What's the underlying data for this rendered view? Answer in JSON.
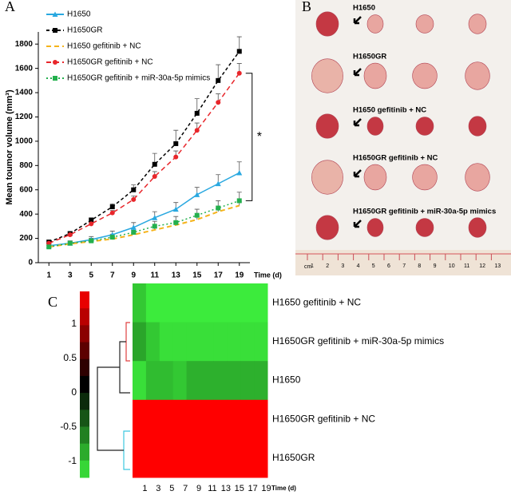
{
  "chart_data": [
    {
      "type": "line",
      "panel_label": "A",
      "ylabel": "Mean toumor volume (mm³)",
      "xlabel": "Time (d)",
      "x": [
        1,
        3,
        5,
        7,
        9,
        11,
        13,
        15,
        17,
        19
      ],
      "xlim": [
        0,
        20
      ],
      "xticks": [
        1,
        3,
        5,
        7,
        9,
        11,
        13,
        15,
        17,
        19
      ],
      "ylim": [
        0,
        1900
      ],
      "yticks": [
        0,
        200,
        400,
        600,
        800,
        1000,
        1200,
        1400,
        1600,
        1800
      ],
      "annotation": "*",
      "series": [
        {
          "name": "H1650",
          "color": "#29a8e0",
          "marker": "triangle",
          "dash": "none",
          "values": [
            140,
            160,
            190,
            230,
            290,
            370,
            440,
            560,
            650,
            740
          ],
          "errors": [
            20,
            20,
            25,
            30,
            40,
            50,
            55,
            60,
            75,
            90
          ]
        },
        {
          "name": "H1650GR",
          "color": "#000000",
          "marker": "square",
          "dash": "4,3",
          "values": [
            170,
            240,
            350,
            460,
            600,
            810,
            980,
            1230,
            1500,
            1740
          ],
          "errors": [
            15,
            15,
            20,
            25,
            40,
            90,
            110,
            120,
            130,
            120
          ]
        },
        {
          "name": "H1650 gefitinib + NC",
          "color": "#f5b31b",
          "marker": "none",
          "dash": "6,4",
          "values": [
            130,
            155,
            175,
            195,
            230,
            270,
            310,
            355,
            420,
            470
          ],
          "errors": [
            10,
            10,
            10,
            15,
            15,
            20,
            20,
            25,
            25,
            30
          ]
        },
        {
          "name": "H1650GR gefitinib + NC",
          "color": "#e8262b",
          "marker": "circle",
          "dash": "6,4",
          "values": [
            160,
            230,
            320,
            410,
            520,
            710,
            870,
            1090,
            1320,
            1560
          ],
          "errors": [
            10,
            10,
            15,
            20,
            30,
            40,
            50,
            60,
            70,
            80
          ]
        },
        {
          "name": "H1650GR gefitinib + miR-30a-5p mimics",
          "color": "#23b04d",
          "marker": "square",
          "dash": "2,3",
          "values": [
            130,
            160,
            180,
            210,
            250,
            300,
            330,
            390,
            450,
            510
          ],
          "errors": [
            15,
            15,
            20,
            25,
            30,
            40,
            50,
            50,
            60,
            70
          ]
        }
      ]
    },
    {
      "type": "heatmap",
      "panel_label": "C",
      "xlabel": "Time (d)",
      "x": [
        1,
        3,
        5,
        7,
        9,
        11,
        13,
        15,
        17,
        19
      ],
      "rows": [
        "H1650 gefitinib + NC",
        "H1650GR gefitinib + miR-30a-5p mimics",
        "H1650",
        "H1650GR gefitinib + NC",
        "H1650GR"
      ],
      "z": [
        [
          -0.85,
          -1,
          -1,
          -1,
          -1,
          -1,
          -1,
          -1,
          -1,
          -1
        ],
        [
          -0.7,
          -0.85,
          -0.95,
          -0.95,
          -0.95,
          -0.95,
          -0.95,
          -0.95,
          -0.95,
          -0.95
        ],
        [
          -0.95,
          -0.8,
          -0.8,
          -0.85,
          -0.75,
          -0.75,
          -0.75,
          -0.75,
          -0.75,
          -0.75
        ],
        [
          1,
          1,
          1,
          1,
          1,
          1,
          1,
          1,
          1,
          1
        ],
        [
          1,
          1,
          1,
          1,
          1,
          1,
          1,
          1,
          1,
          1
        ]
      ],
      "zlim": [
        -1,
        1
      ],
      "colorbar_ticks": [
        1,
        0.5,
        0,
        -0.5,
        -1
      ]
    }
  ],
  "photo": {
    "panel_label": "B",
    "groups": [
      "H1650",
      "H1650GR",
      "H1650 gefitinib + NC",
      "H1650GR gefitinib + NC",
      "H1650GR gefitinib + miR-30a-5p mimics"
    ],
    "ruler_unit": "cm",
    "ruler_labels": [
      1,
      2,
      3,
      4,
      5,
      6,
      7,
      8,
      9,
      10,
      11,
      12,
      13
    ]
  }
}
